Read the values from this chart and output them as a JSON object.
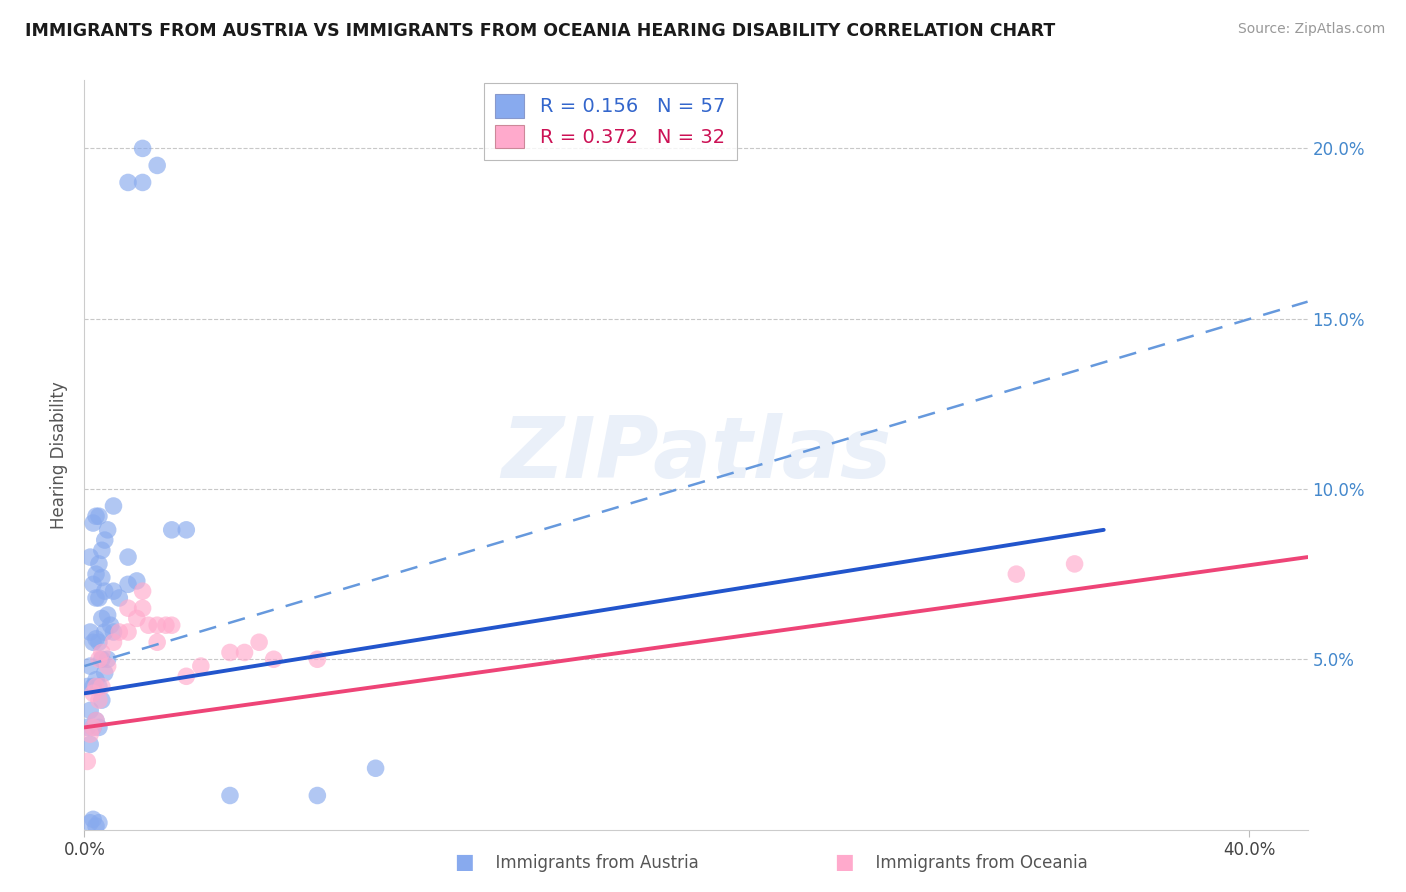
{
  "title": "IMMIGRANTS FROM AUSTRIA VS IMMIGRANTS FROM OCEANIA HEARING DISABILITY CORRELATION CHART",
  "source": "Source: ZipAtlas.com",
  "ylabel": "Hearing Disability",
  "xlim": [
    0.0,
    0.42
  ],
  "ylim": [
    0.0,
    0.22
  ],
  "background_color": "#ffffff",
  "grid_color": "#c8c8c8",
  "watermark": "ZIPatlas",
  "right_tick_color": "#4488cc",
  "austria": {
    "name": "Immigrants from Austria",
    "R": "0.156",
    "N": "57",
    "dot_color": "#88aaee",
    "line_color": "#2255cc",
    "dash_color": "#6699dd",
    "x": [
      0.001,
      0.001,
      0.002,
      0.002,
      0.002,
      0.002,
      0.003,
      0.003,
      0.003,
      0.004,
      0.004,
      0.004,
      0.004,
      0.005,
      0.005,
      0.005,
      0.005,
      0.006,
      0.006,
      0.006,
      0.006,
      0.007,
      0.007,
      0.007,
      0.008,
      0.008,
      0.009,
      0.01,
      0.01,
      0.012,
      0.015,
      0.015,
      0.018,
      0.002,
      0.003,
      0.004,
      0.005,
      0.006,
      0.007,
      0.008,
      0.003,
      0.004,
      0.005,
      0.01,
      0.015,
      0.02,
      0.02,
      0.025,
      0.03,
      0.035,
      0.05,
      0.08,
      0.1,
      0.003,
      0.002,
      0.004,
      0.005
    ],
    "y": [
      0.03,
      0.042,
      0.025,
      0.035,
      0.048,
      0.058,
      0.03,
      0.042,
      0.055,
      0.032,
      0.044,
      0.056,
      0.068,
      0.03,
      0.042,
      0.055,
      0.068,
      0.038,
      0.05,
      0.062,
      0.074,
      0.046,
      0.058,
      0.07,
      0.05,
      0.063,
      0.06,
      0.058,
      0.07,
      0.068,
      0.072,
      0.08,
      0.073,
      0.08,
      0.072,
      0.075,
      0.078,
      0.082,
      0.085,
      0.088,
      0.09,
      0.092,
      0.092,
      0.095,
      0.19,
      0.19,
      0.2,
      0.195,
      0.088,
      0.088,
      0.01,
      0.01,
      0.018,
      0.003,
      0.002,
      0.001,
      0.002
    ],
    "solid_line": [
      [
        0.0,
        0.04
      ],
      [
        0.35,
        0.088
      ]
    ],
    "dashed_line": [
      [
        0.0,
        0.048
      ],
      [
        0.42,
        0.155
      ]
    ]
  },
  "oceania": {
    "name": "Immigrants from Oceania",
    "R": "0.372",
    "N": "32",
    "dot_color": "#ffaacc",
    "line_color": "#ee4477",
    "x": [
      0.001,
      0.002,
      0.003,
      0.003,
      0.004,
      0.004,
      0.005,
      0.005,
      0.006,
      0.006,
      0.008,
      0.01,
      0.012,
      0.015,
      0.015,
      0.018,
      0.02,
      0.02,
      0.022,
      0.025,
      0.025,
      0.028,
      0.03,
      0.035,
      0.04,
      0.05,
      0.055,
      0.06,
      0.065,
      0.08,
      0.32,
      0.34
    ],
    "y": [
      0.02,
      0.028,
      0.03,
      0.04,
      0.032,
      0.042,
      0.038,
      0.05,
      0.042,
      0.052,
      0.048,
      0.055,
      0.058,
      0.058,
      0.065,
      0.062,
      0.065,
      0.07,
      0.06,
      0.055,
      0.06,
      0.06,
      0.06,
      0.045,
      0.048,
      0.052,
      0.052,
      0.055,
      0.05,
      0.05,
      0.075,
      0.078
    ],
    "solid_line": [
      [
        0.0,
        0.03
      ],
      [
        0.42,
        0.08
      ]
    ]
  }
}
